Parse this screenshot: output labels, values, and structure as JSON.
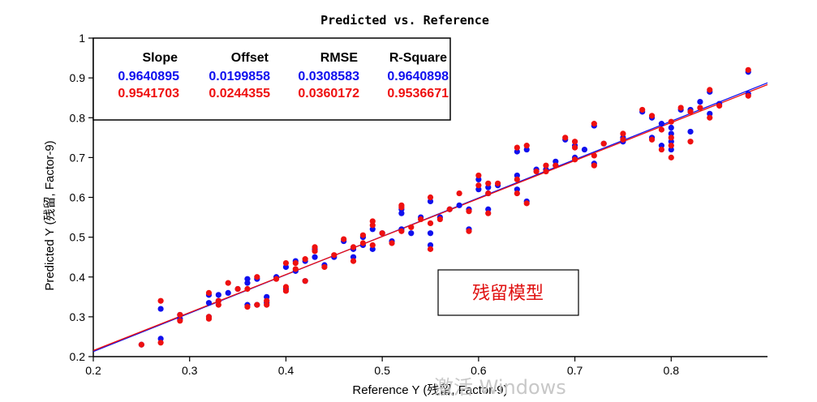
{
  "chart_data": {
    "type": "scatter",
    "title": "Predicted vs. Reference",
    "xlabel": "Reference Y (残留, Factor-9)",
    "ylabel": "Predicted Y (残留, Factor-9)",
    "xlim": [
      0.2,
      0.9
    ],
    "ylim": [
      0.2,
      1.0
    ],
    "xticks": [
      "0.2",
      "0.3",
      "0.4",
      "0.5",
      "0.6",
      "0.7",
      "0.8"
    ],
    "yticks": [
      "0.2",
      "0.3",
      "0.4",
      "0.5",
      "0.6",
      "0.7",
      "0.8",
      "0.9",
      "1"
    ],
    "xtick_values": [
      0.2,
      0.3,
      0.4,
      0.5,
      0.6,
      0.7,
      0.8
    ],
    "ytick_values": [
      0.2,
      0.3,
      0.4,
      0.5,
      0.6,
      0.7,
      0.8,
      0.9,
      1.0
    ],
    "grid": false,
    "stats_table": {
      "headers": [
        "Slope",
        "Offset",
        "RMSE",
        "R-Square"
      ],
      "rows": [
        {
          "color": "#1010ee",
          "values": [
            "0.9640895",
            "0.0199858",
            "0.0308583",
            "0.9640898"
          ]
        },
        {
          "color": "#ee1010",
          "values": [
            "0.9541703",
            "0.0244355",
            "0.0360172",
            "0.9536671"
          ]
        }
      ]
    },
    "series": [
      {
        "color": "#1010ee",
        "fit": {
          "slope": 0.9640895,
          "offset": 0.0199858
        },
        "points": [
          [
            0.25,
            0.23
          ],
          [
            0.27,
            0.245
          ],
          [
            0.27,
            0.32
          ],
          [
            0.29,
            0.295
          ],
          [
            0.29,
            0.305
          ],
          [
            0.32,
            0.3
          ],
          [
            0.32,
            0.335
          ],
          [
            0.32,
            0.355
          ],
          [
            0.33,
            0.34
          ],
          [
            0.33,
            0.355
          ],
          [
            0.34,
            0.36
          ],
          [
            0.35,
            0.37
          ],
          [
            0.36,
            0.33
          ],
          [
            0.36,
            0.385
          ],
          [
            0.36,
            0.395
          ],
          [
            0.37,
            0.33
          ],
          [
            0.37,
            0.395
          ],
          [
            0.38,
            0.335
          ],
          [
            0.38,
            0.35
          ],
          [
            0.39,
            0.4
          ],
          [
            0.4,
            0.37
          ],
          [
            0.4,
            0.425
          ],
          [
            0.41,
            0.415
          ],
          [
            0.41,
            0.44
          ],
          [
            0.42,
            0.39
          ],
          [
            0.42,
            0.44
          ],
          [
            0.43,
            0.45
          ],
          [
            0.43,
            0.47
          ],
          [
            0.44,
            0.43
          ],
          [
            0.45,
            0.45
          ],
          [
            0.46,
            0.49
          ],
          [
            0.47,
            0.45
          ],
          [
            0.47,
            0.47
          ],
          [
            0.48,
            0.48
          ],
          [
            0.48,
            0.5
          ],
          [
            0.49,
            0.47
          ],
          [
            0.49,
            0.52
          ],
          [
            0.5,
            0.51
          ],
          [
            0.51,
            0.49
          ],
          [
            0.52,
            0.52
          ],
          [
            0.52,
            0.56
          ],
          [
            0.52,
            0.57
          ],
          [
            0.53,
            0.51
          ],
          [
            0.54,
            0.55
          ],
          [
            0.55,
            0.48
          ],
          [
            0.55,
            0.51
          ],
          [
            0.55,
            0.59
          ],
          [
            0.56,
            0.55
          ],
          [
            0.57,
            0.57
          ],
          [
            0.58,
            0.58
          ],
          [
            0.59,
            0.52
          ],
          [
            0.59,
            0.57
          ],
          [
            0.6,
            0.62
          ],
          [
            0.6,
            0.645
          ],
          [
            0.61,
            0.57
          ],
          [
            0.61,
            0.61
          ],
          [
            0.61,
            0.625
          ],
          [
            0.62,
            0.63
          ],
          [
            0.64,
            0.62
          ],
          [
            0.64,
            0.655
          ],
          [
            0.64,
            0.715
          ],
          [
            0.65,
            0.59
          ],
          [
            0.65,
            0.72
          ],
          [
            0.66,
            0.67
          ],
          [
            0.67,
            0.67
          ],
          [
            0.68,
            0.68
          ],
          [
            0.68,
            0.69
          ],
          [
            0.69,
            0.745
          ],
          [
            0.7,
            0.7
          ],
          [
            0.7,
            0.73
          ],
          [
            0.71,
            0.72
          ],
          [
            0.72,
            0.685
          ],
          [
            0.72,
            0.78
          ],
          [
            0.73,
            0.735
          ],
          [
            0.75,
            0.74
          ],
          [
            0.75,
            0.75
          ],
          [
            0.77,
            0.815
          ],
          [
            0.78,
            0.75
          ],
          [
            0.78,
            0.8
          ],
          [
            0.79,
            0.73
          ],
          [
            0.79,
            0.785
          ],
          [
            0.8,
            0.72
          ],
          [
            0.8,
            0.74
          ],
          [
            0.8,
            0.76
          ],
          [
            0.8,
            0.775
          ],
          [
            0.81,
            0.82
          ],
          [
            0.82,
            0.765
          ],
          [
            0.82,
            0.82
          ],
          [
            0.83,
            0.84
          ],
          [
            0.84,
            0.81
          ],
          [
            0.84,
            0.865
          ],
          [
            0.85,
            0.835
          ],
          [
            0.88,
            0.86
          ],
          [
            0.88,
            0.915
          ]
        ]
      },
      {
        "color": "#ee1010",
        "fit": {
          "slope": 0.9541703,
          "offset": 0.0244355
        },
        "points": [
          [
            0.25,
            0.23
          ],
          [
            0.27,
            0.235
          ],
          [
            0.27,
            0.34
          ],
          [
            0.29,
            0.29
          ],
          [
            0.29,
            0.305
          ],
          [
            0.32,
            0.295
          ],
          [
            0.32,
            0.3
          ],
          [
            0.32,
            0.36
          ],
          [
            0.33,
            0.33
          ],
          [
            0.33,
            0.34
          ],
          [
            0.34,
            0.385
          ],
          [
            0.35,
            0.37
          ],
          [
            0.36,
            0.325
          ],
          [
            0.36,
            0.37
          ],
          [
            0.37,
            0.33
          ],
          [
            0.37,
            0.4
          ],
          [
            0.38,
            0.33
          ],
          [
            0.38,
            0.34
          ],
          [
            0.39,
            0.395
          ],
          [
            0.4,
            0.365
          ],
          [
            0.4,
            0.375
          ],
          [
            0.4,
            0.435
          ],
          [
            0.41,
            0.42
          ],
          [
            0.41,
            0.435
          ],
          [
            0.42,
            0.39
          ],
          [
            0.42,
            0.445
          ],
          [
            0.43,
            0.465
          ],
          [
            0.43,
            0.475
          ],
          [
            0.44,
            0.425
          ],
          [
            0.45,
            0.455
          ],
          [
            0.46,
            0.495
          ],
          [
            0.47,
            0.44
          ],
          [
            0.47,
            0.475
          ],
          [
            0.48,
            0.485
          ],
          [
            0.48,
            0.505
          ],
          [
            0.49,
            0.48
          ],
          [
            0.49,
            0.53
          ],
          [
            0.49,
            0.54
          ],
          [
            0.5,
            0.51
          ],
          [
            0.51,
            0.485
          ],
          [
            0.52,
            0.515
          ],
          [
            0.52,
            0.575
          ],
          [
            0.52,
            0.58
          ],
          [
            0.53,
            0.525
          ],
          [
            0.54,
            0.545
          ],
          [
            0.55,
            0.47
          ],
          [
            0.55,
            0.535
          ],
          [
            0.55,
            0.6
          ],
          [
            0.56,
            0.545
          ],
          [
            0.57,
            0.57
          ],
          [
            0.58,
            0.61
          ],
          [
            0.59,
            0.515
          ],
          [
            0.59,
            0.565
          ],
          [
            0.6,
            0.63
          ],
          [
            0.6,
            0.655
          ],
          [
            0.61,
            0.56
          ],
          [
            0.61,
            0.61
          ],
          [
            0.61,
            0.635
          ],
          [
            0.62,
            0.635
          ],
          [
            0.64,
            0.61
          ],
          [
            0.64,
            0.645
          ],
          [
            0.64,
            0.725
          ],
          [
            0.65,
            0.585
          ],
          [
            0.65,
            0.73
          ],
          [
            0.66,
            0.665
          ],
          [
            0.67,
            0.665
          ],
          [
            0.67,
            0.68
          ],
          [
            0.68,
            0.68
          ],
          [
            0.69,
            0.75
          ],
          [
            0.7,
            0.695
          ],
          [
            0.7,
            0.725
          ],
          [
            0.7,
            0.74
          ],
          [
            0.72,
            0.68
          ],
          [
            0.72,
            0.705
          ],
          [
            0.72,
            0.785
          ],
          [
            0.73,
            0.735
          ],
          [
            0.75,
            0.745
          ],
          [
            0.75,
            0.76
          ],
          [
            0.77,
            0.82
          ],
          [
            0.78,
            0.745
          ],
          [
            0.78,
            0.805
          ],
          [
            0.79,
            0.72
          ],
          [
            0.79,
            0.77
          ],
          [
            0.8,
            0.7
          ],
          [
            0.8,
            0.73
          ],
          [
            0.8,
            0.75
          ],
          [
            0.8,
            0.79
          ],
          [
            0.81,
            0.825
          ],
          [
            0.82,
            0.74
          ],
          [
            0.82,
            0.815
          ],
          [
            0.83,
            0.825
          ],
          [
            0.84,
            0.8
          ],
          [
            0.84,
            0.87
          ],
          [
            0.85,
            0.83
          ],
          [
            0.88,
            0.855
          ],
          [
            0.88,
            0.92
          ]
        ]
      }
    ],
    "annotation": "残留模型",
    "watermark": "激活 Windows"
  }
}
